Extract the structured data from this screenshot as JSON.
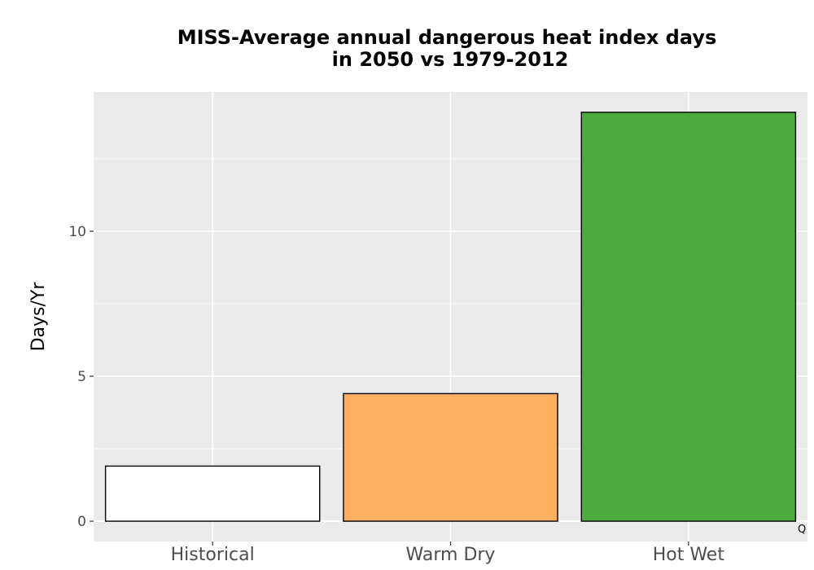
{
  "chart_data": {
    "type": "bar",
    "title_lines": [
      "MISS-Average annual dangerous heat index days",
      "in 2050 vs 1979-2012"
    ],
    "xlabel": "",
    "ylabel": "Days/Yr",
    "categories": [
      "Historical",
      "Warm Dry",
      "Hot Wet"
    ],
    "values": [
      1.9,
      4.4,
      14.1
    ],
    "colors": [
      "#ffffff",
      "#fdae61",
      "#4daa3f"
    ],
    "bar_outline_color": "#000000",
    "ylim": [
      -0.7,
      14.8
    ],
    "yticks": [
      0,
      5,
      10
    ],
    "ytick_labels": [
      "0",
      "5",
      "10"
    ],
    "grid": true,
    "panel_background": "#ebebeb",
    "grid_color": "#ffffff",
    "legend": "none"
  },
  "corner_mark": "Q"
}
